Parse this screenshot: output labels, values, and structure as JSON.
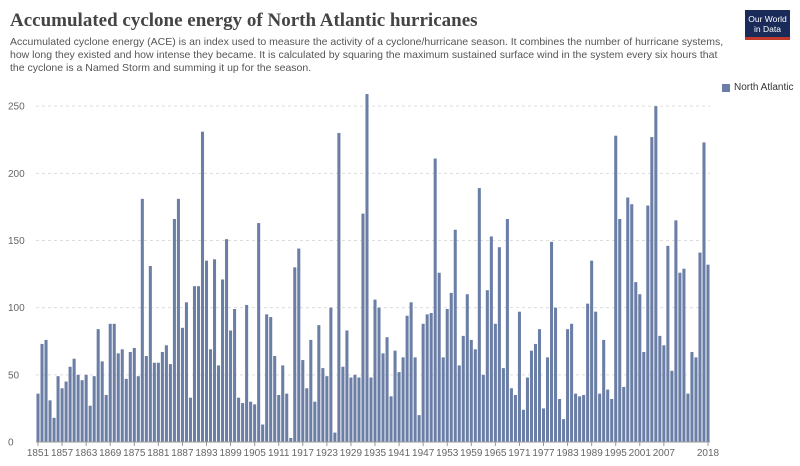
{
  "header": {
    "title": "Accumulated cyclone energy of North Atlantic hurricanes",
    "subtitle": "Accumulated cyclone energy (ACE) is an index used to measure the activity of a cyclone/hurricane season. It combines the number of hurricane systems, how long they existed and how intense they became. It is calculated by squaring the maximum sustained surface wind in the system every six hours that the cyclone is a Named Storm and summing it up for the season."
  },
  "logo": {
    "line1": "Our World",
    "line2": "in Data"
  },
  "chart_data": {
    "type": "bar",
    "title": "Accumulated cyclone energy of North Atlantic hurricanes",
    "series": [
      {
        "name": "North Atlantic",
        "color": "#6b7ea6",
        "x_start": 1851,
        "values": [
          36,
          73,
          76,
          31,
          18,
          49,
          40,
          45,
          56,
          62,
          50,
          46,
          50,
          27,
          49,
          84,
          60,
          35,
          88,
          88,
          66,
          69,
          47,
          67,
          70,
          49,
          181,
          64,
          131,
          59,
          59,
          67,
          72,
          58,
          166,
          181,
          85,
          104,
          33,
          116,
          116,
          231,
          135,
          69,
          136,
          57,
          121,
          151,
          83,
          99,
          33,
          29,
          102,
          30,
          28,
          163,
          13,
          95,
          93,
          64,
          35,
          57,
          36,
          3,
          130,
          144,
          61,
          40,
          76,
          30,
          87,
          55,
          49,
          100,
          7,
          230,
          56,
          83,
          48,
          50,
          48,
          170,
          259,
          48,
          106,
          100,
          66,
          78,
          34,
          68,
          52,
          63,
          94,
          104,
          63,
          20,
          88,
          95,
          96,
          211,
          126,
          63,
          99,
          111,
          158,
          57,
          79,
          110,
          76,
          69,
          189,
          50,
          113,
          153,
          88,
          145,
          55,
          166,
          40,
          35,
          97,
          24,
          48,
          68,
          73,
          84,
          25,
          63,
          149,
          100,
          32,
          17,
          84,
          88,
          36,
          34,
          35,
          103,
          135,
          97,
          36,
          76,
          39,
          32,
          228,
          166,
          41,
          182,
          177,
          119,
          110,
          67,
          176,
          227,
          250,
          79,
          72,
          146,
          53,
          165,
          126,
          129,
          36,
          67,
          63,
          141,
          223,
          132
        ]
      }
    ],
    "x_tick_labels": [
      "1851",
      "1857",
      "1863",
      "1869",
      "1875",
      "1881",
      "1887",
      "1893",
      "1899",
      "1905",
      "1911",
      "1917",
      "1923",
      "1929",
      "1935",
      "1941",
      "1947",
      "1953",
      "1959",
      "1965",
      "1971",
      "1977",
      "1983",
      "1989",
      "1995",
      "2001",
      "2007",
      "2018"
    ],
    "y_ticks": [
      "0",
      "50",
      "100",
      "150",
      "200",
      "250"
    ],
    "ylim": [
      0,
      265
    ],
    "grid": "horizontal-dashed",
    "legend_position": "top-right",
    "xlabel": "",
    "ylabel": ""
  }
}
